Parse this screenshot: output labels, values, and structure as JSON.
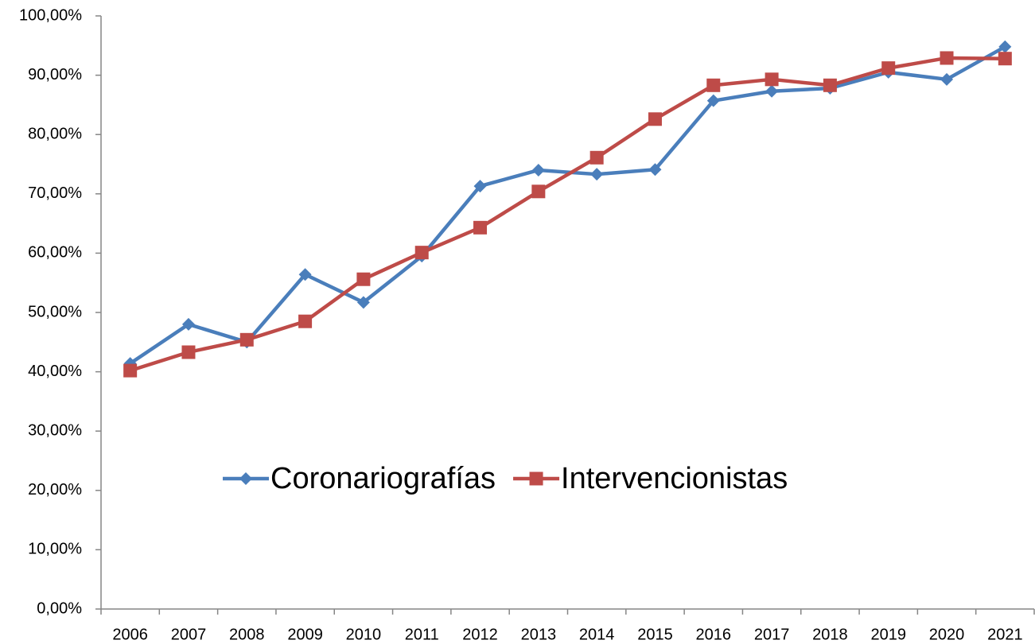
{
  "chart_data": {
    "type": "line",
    "categories": [
      "2006",
      "2007",
      "2008",
      "2009",
      "2010",
      "2011",
      "2012",
      "2013",
      "2014",
      "2015",
      "2016",
      "2017",
      "2018",
      "2019",
      "2020",
      "2021"
    ],
    "series": [
      {
        "name": "Coronariografías",
        "color": "#4a7ebb",
        "marker": "diamond",
        "values": [
          41.4,
          48.0,
          45.0,
          56.4,
          51.7,
          59.5,
          71.3,
          74.0,
          73.3,
          74.1,
          85.7,
          87.3,
          87.8,
          90.5,
          89.3,
          94.8
        ]
      },
      {
        "name": "Intervencionistas",
        "color": "#be4b48",
        "marker": "square",
        "values": [
          40.2,
          43.3,
          45.4,
          48.5,
          55.6,
          60.1,
          64.3,
          70.4,
          76.1,
          82.6,
          88.3,
          89.3,
          88.3,
          91.2,
          92.9,
          92.8
        ]
      }
    ],
    "ylim": [
      0,
      100
    ],
    "yticks": [
      {
        "value": 0,
        "label": "0,00%"
      },
      {
        "value": 10,
        "label": "10,00%"
      },
      {
        "value": 20,
        "label": "20,00%"
      },
      {
        "value": 30,
        "label": "30,00%"
      },
      {
        "value": 40,
        "label": "40,00%"
      },
      {
        "value": 50,
        "label": "50,00%"
      },
      {
        "value": 60,
        "label": "60,00%"
      },
      {
        "value": 70,
        "label": "70,00%"
      },
      {
        "value": 80,
        "label": "80,00%"
      },
      {
        "value": 90,
        "label": "90,00%"
      },
      {
        "value": 100,
        "label": "100,00%"
      }
    ],
    "grid": false,
    "legend": "center"
  }
}
